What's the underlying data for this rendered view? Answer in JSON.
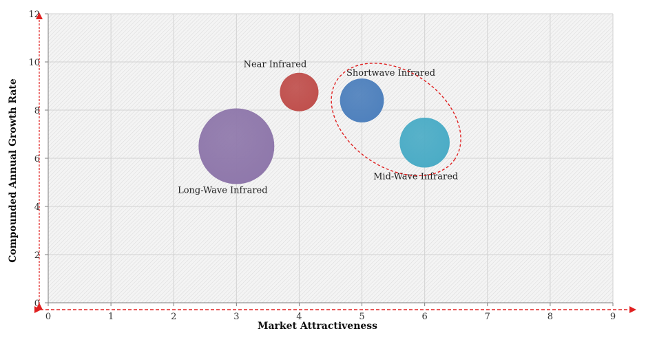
{
  "chart_data": {
    "type": "bubble",
    "title": "",
    "xlabel": "Market Attractiveness",
    "ylabel": "Compounded  Annual  Growth Rate",
    "xlim": [
      0,
      9
    ],
    "ylim": [
      0,
      12
    ],
    "xticks": [
      "0",
      "1",
      "2",
      "3",
      "4",
      "5",
      "6",
      "7",
      "8",
      "9"
    ],
    "yticks": [
      "0",
      "2",
      "4",
      "6",
      "8",
      "10",
      "12"
    ],
    "grid": true,
    "legend": "none",
    "series": [
      {
        "name": "Long-Wave Infrared",
        "x": 3,
        "y": 6.5,
        "relative_size": 1.0,
        "color": "#8f78ab"
      },
      {
        "name": "Near Infrared",
        "x": 4,
        "y": 8.75,
        "relative_size": 0.51,
        "color": "#c0504d"
      },
      {
        "name": "Shortwave Infrared",
        "x": 5,
        "y": 8.4,
        "relative_size": 0.58,
        "color": "#4f81bd"
      },
      {
        "name": "Mid-Wave Infrared",
        "x": 6,
        "y": 6.65,
        "relative_size": 0.66,
        "color": "#4bacc6"
      }
    ],
    "annotations": {
      "highlight_ellipse": {
        "around": [
          "Shortwave Infrared",
          "Mid-Wave Infrared"
        ],
        "style": "dashed",
        "color": "#e02020"
      },
      "axis_arrows": {
        "style": "dashed",
        "color": "#e02020"
      }
    }
  }
}
